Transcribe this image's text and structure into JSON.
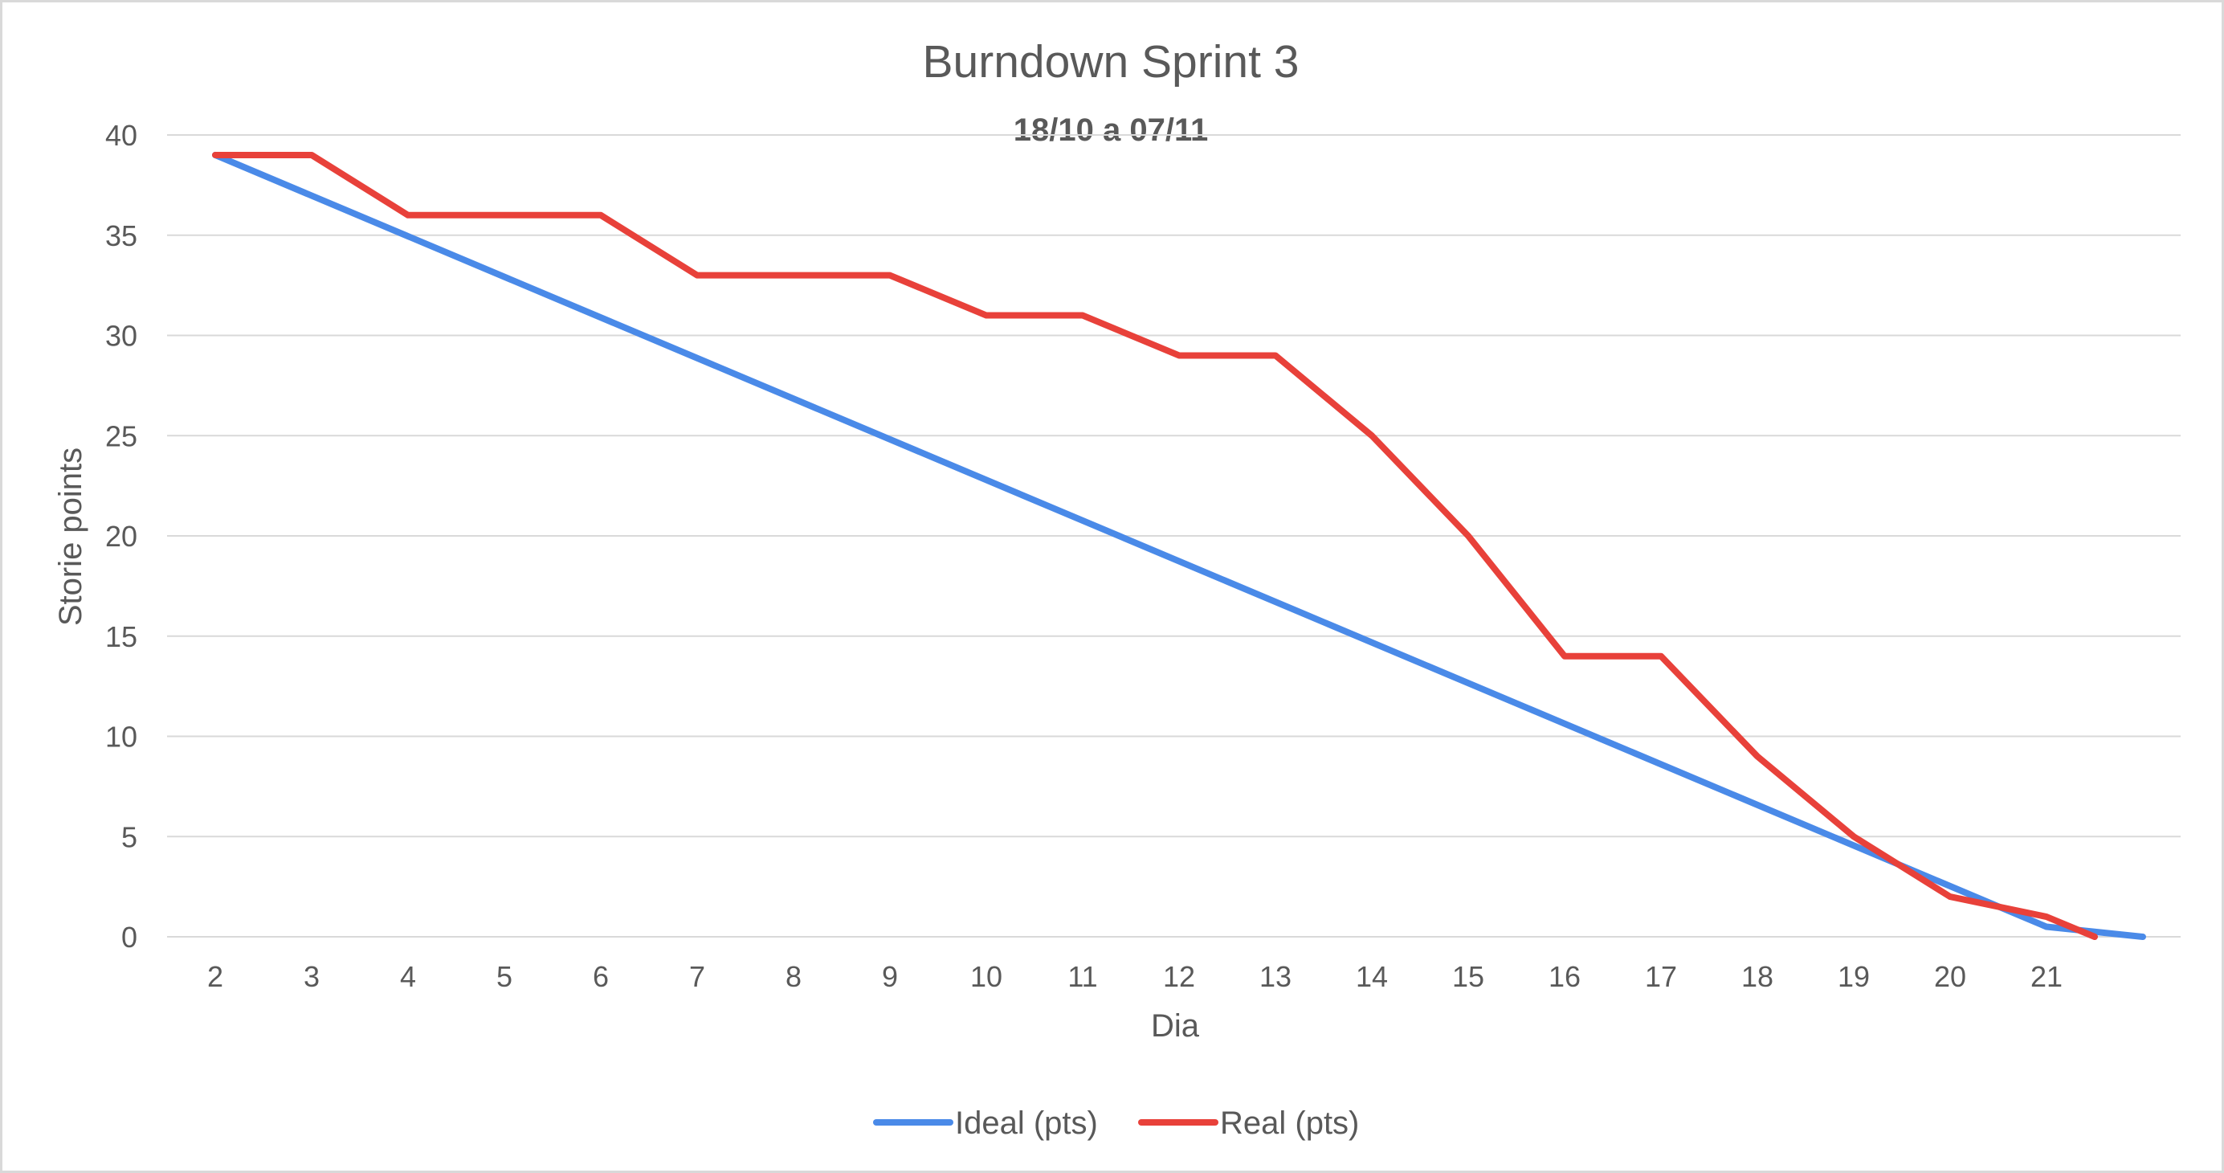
{
  "chart_data": {
    "type": "line",
    "title": "Burndown Sprint 3",
    "subtitle": "18/10 a 07/11",
    "xlabel": "Dia",
    "ylabel": "Storie points",
    "ylim": [
      0,
      40
    ],
    "yticks": [
      "0",
      "5",
      "10",
      "15",
      "20",
      "25",
      "30",
      "35",
      "40"
    ],
    "categories": [
      "2",
      "3",
      "4",
      "5",
      "6",
      "7",
      "8",
      "9",
      "10",
      "11",
      "12",
      "13",
      "14",
      "15",
      "16",
      "17",
      "18",
      "19",
      "20",
      "21"
    ],
    "grid": true,
    "legend_position": "bottom",
    "series": [
      {
        "name": "Ideal (pts)",
        "color": "#4a8ae8",
        "points": [
          [
            2,
            39
          ],
          [
            21,
            0.5
          ],
          [
            22,
            0
          ]
        ]
      },
      {
        "name": "Real (pts)",
        "color": "#e8413a",
        "points": [
          [
            2,
            39
          ],
          [
            3,
            39
          ],
          [
            4,
            36
          ],
          [
            5,
            36
          ],
          [
            6,
            36
          ],
          [
            7,
            33
          ],
          [
            8,
            33
          ],
          [
            9,
            33
          ],
          [
            10,
            31
          ],
          [
            11,
            31
          ],
          [
            12,
            29
          ],
          [
            13,
            29
          ],
          [
            14,
            25
          ],
          [
            15,
            20
          ],
          [
            16,
            14
          ],
          [
            17,
            14
          ],
          [
            18,
            9
          ],
          [
            19,
            5
          ],
          [
            20,
            2
          ],
          [
            21,
            1
          ],
          [
            21.5,
            0
          ]
        ]
      }
    ]
  }
}
